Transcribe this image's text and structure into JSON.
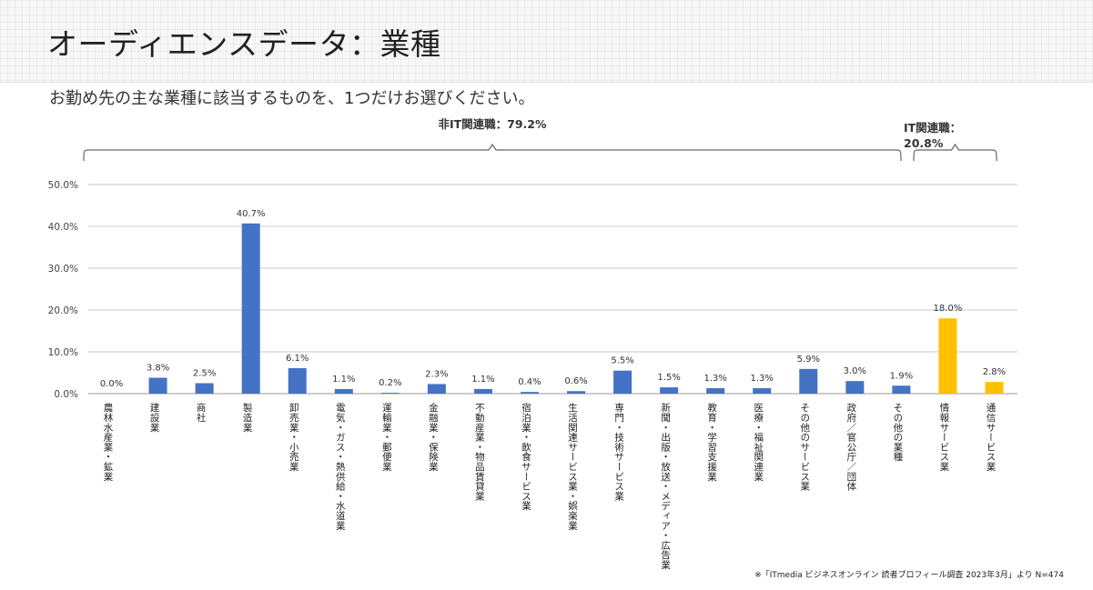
{
  "slide": {
    "title": "オーディエンスデータ：業種",
    "question": "お勤め先の主な業種に該当するものを、1つだけお選びください。",
    "footnote": "※「ITmedia ビジネスオンライン 読者プロフィール調査 2023年3月」より N=474"
  },
  "colors": {
    "non_it": "#4472C4",
    "it": "#FFC000",
    "grid": "#c8c8c8",
    "axis": "#999999"
  },
  "chart_data": {
    "type": "bar",
    "title": "",
    "xlabel": "",
    "ylabel": "",
    "ylim": [
      0,
      50
    ],
    "yticks": [
      "0.0%",
      "10.0%",
      "20.0%",
      "30.0%",
      "40.0%",
      "50.0%"
    ],
    "grid": true,
    "categories": [
      "農林水産業・鉱業",
      "建設業",
      "商社",
      "製造業",
      "卸売業・小売業",
      "電気・ガス・熱供給・水道業",
      "運輸業・郵便業",
      "金融業・保険業",
      "不動産業・物品賃貸業",
      "宿泊業・飲食サービス業",
      "生活関連サービス業・娯楽業",
      "専門・技術サービス業",
      "新聞・出版・放送・メディア・広告業",
      "教育・学習支援業",
      "医療・福祉関連業",
      "その他のサービス業",
      "政府／官公庁／団体",
      "その他の業種",
      "情報サービス業",
      "通信サービス業"
    ],
    "values": [
      0.0,
      3.8,
      2.5,
      40.7,
      6.1,
      1.1,
      0.2,
      2.3,
      1.1,
      0.4,
      0.6,
      5.5,
      1.5,
      1.3,
      1.3,
      5.9,
      3.0,
      1.9,
      18.0,
      2.8
    ],
    "labels": [
      "0.0%",
      "3.8%",
      "2.5%",
      "40.7%",
      "6.1%",
      "1.1%",
      "0.2%",
      "2.3%",
      "1.1%",
      "0.4%",
      "0.6%",
      "5.5%",
      "1.5%",
      "1.3%",
      "1.3%",
      "5.9%",
      "3.0%",
      "1.9%",
      "18.0%",
      "2.8%"
    ],
    "groups": [
      {
        "label": "非IT関連職：79.2%",
        "from": 0,
        "to": 17,
        "color_key": "non_it"
      },
      {
        "label": "IT関連職：20.8%",
        "from": 18,
        "to": 19,
        "color_key": "it"
      }
    ]
  }
}
